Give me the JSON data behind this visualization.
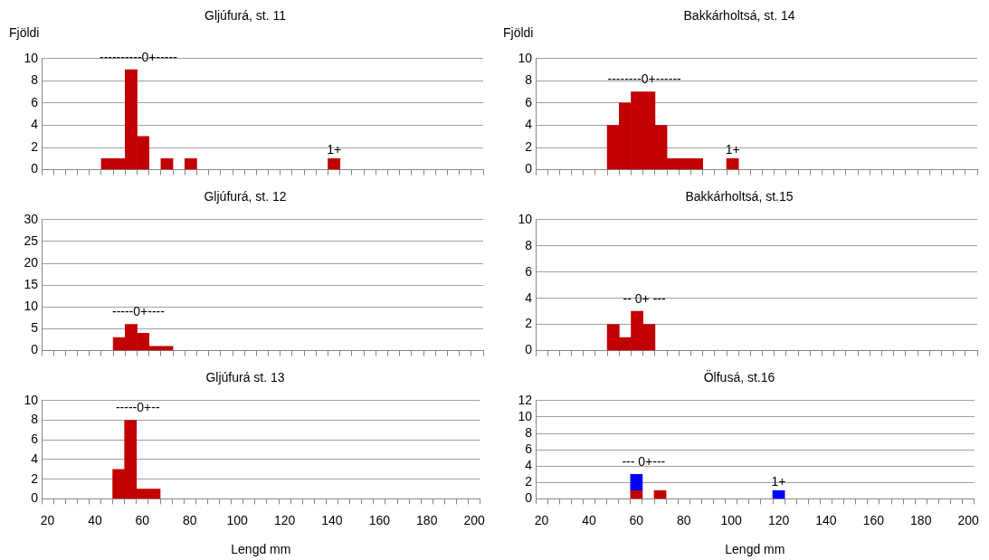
{
  "chart_data": [
    {
      "type": "bar",
      "title": "Gljúfurá, st. 11",
      "ylabel": "Fjöldi",
      "color": "#c00000",
      "categories": [
        "20",
        null,
        null,
        null,
        "40",
        null,
        null,
        null,
        "60",
        null,
        null,
        null,
        "80",
        null,
        null,
        null,
        "100",
        null,
        null,
        null,
        "120",
        null,
        null,
        null,
        "140",
        null,
        null,
        null,
        "160",
        null,
        null,
        null,
        "180",
        null,
        null,
        null,
        "200"
      ],
      "values": [
        null,
        null,
        null,
        null,
        null,
        1,
        1,
        9,
        3,
        null,
        1,
        null,
        1,
        null,
        null,
        null,
        null,
        null,
        null,
        null,
        null,
        null,
        null,
        null,
        1,
        null,
        null,
        null,
        null,
        null,
        null,
        null,
        null,
        null,
        null,
        null,
        null
      ],
      "ylim": [
        0,
        10
      ],
      "yticks": [
        0,
        2,
        4,
        6,
        8,
        10
      ],
      "grid": "y",
      "tick_labels": "y",
      "annotations": [
        "----------0+-----",
        {
          "text": "1+",
          "x": "140",
          "y": 1
        }
      ]
    },
    {
      "type": "bar",
      "title": "Bakkárholtsá, st. 14",
      "ylabel": "Fjöldi",
      "color": "#c00000",
      "categories": [
        "20",
        null,
        null,
        null,
        "40",
        null,
        null,
        null,
        "60",
        null,
        null,
        null,
        "80",
        null,
        null,
        null,
        "100",
        null,
        null,
        null,
        "120",
        null,
        null,
        null,
        "140",
        null,
        null,
        null,
        "160",
        null,
        null,
        null,
        "180",
        null,
        null,
        null,
        "200"
      ],
      "values": [
        null,
        null,
        null,
        null,
        null,
        null,
        4,
        6,
        7,
        7,
        4,
        1,
        1,
        1,
        null,
        null,
        1,
        null,
        null,
        null,
        null,
        null,
        null,
        null,
        null,
        null,
        null,
        null,
        null,
        null,
        null,
        null,
        null,
        null,
        null,
        null,
        null
      ],
      "ylim": [
        0,
        10
      ],
      "yticks": [
        0,
        2,
        4,
        6,
        8,
        10
      ],
      "grid": "y",
      "tick_labels": "y",
      "annotations": [
        "--------0+------",
        {
          "text": "1+",
          "x": "100",
          "y": 1
        }
      ]
    },
    {
      "type": "bar",
      "title": "Gljúfurá, st. 12",
      "color": "#c00000",
      "categories": [
        "20",
        null,
        null,
        null,
        "40",
        null,
        null,
        null,
        "60",
        null,
        null,
        null,
        "80",
        null,
        null,
        null,
        "100",
        null,
        null,
        null,
        "120",
        null,
        null,
        null,
        "140",
        null,
        null,
        null,
        "160",
        null,
        null,
        null,
        "180",
        null,
        null,
        null,
        "200"
      ],
      "values": [
        null,
        null,
        null,
        null,
        null,
        null,
        3,
        6,
        4,
        1,
        1,
        null,
        null,
        null,
        null,
        null,
        null,
        null,
        null,
        null,
        null,
        null,
        null,
        null,
        null,
        null,
        null,
        null,
        null,
        null,
        null,
        null,
        null,
        null,
        null,
        null,
        null
      ],
      "ylim": [
        0,
        30
      ],
      "yticks": [
        0,
        5,
        10,
        15,
        20,
        25,
        30
      ],
      "grid": "y",
      "tick_labels": "y",
      "annotations": [
        "-----0+----"
      ]
    },
    {
      "type": "bar",
      "title": "Bakkárholtsá, st.15",
      "color": "#c00000",
      "categories": [
        "20",
        null,
        null,
        null,
        "40",
        null,
        null,
        null,
        "60",
        null,
        null,
        null,
        "80",
        null,
        null,
        null,
        "100",
        null,
        null,
        null,
        "120",
        null,
        null,
        null,
        "140",
        null,
        null,
        null,
        "160",
        null,
        null,
        null,
        "180",
        null,
        null,
        null,
        "200"
      ],
      "values": [
        null,
        null,
        null,
        null,
        null,
        null,
        2,
        1,
        3,
        2,
        null,
        null,
        null,
        null,
        null,
        null,
        null,
        null,
        null,
        null,
        null,
        null,
        null,
        null,
        null,
        null,
        null,
        null,
        null,
        null,
        null,
        null,
        null,
        null,
        null,
        null,
        null
      ],
      "ylim": [
        0,
        10
      ],
      "yticks": [
        0,
        2,
        4,
        6,
        8,
        10
      ],
      "grid": "y",
      "tick_labels": "y",
      "annotations": [
        "-- 0+ ---"
      ]
    },
    {
      "type": "bar",
      "title": "Gljúfurá st. 13",
      "xlabel": "Lengd mm",
      "color": "#c00000",
      "categories": [
        "20",
        null,
        null,
        null,
        "40",
        null,
        null,
        null,
        "60",
        null,
        null,
        null,
        "80",
        null,
        null,
        null,
        "100",
        null,
        null,
        null,
        "120",
        null,
        null,
        null,
        "140",
        null,
        null,
        null,
        "160",
        null,
        null,
        null,
        "180",
        null,
        null,
        null,
        "200"
      ],
      "values": [
        null,
        null,
        null,
        null,
        null,
        null,
        3,
        8,
        1,
        1,
        null,
        null,
        null,
        null,
        null,
        null,
        null,
        null,
        null,
        null,
        null,
        null,
        null,
        null,
        null,
        null,
        null,
        null,
        null,
        null,
        null,
        null,
        null,
        null,
        null,
        null,
        null
      ],
      "ylim": [
        0,
        10
      ],
      "yticks": [
        0,
        2,
        4,
        6,
        8,
        10
      ],
      "grid": "y",
      "annotations": [
        "-----0+--"
      ]
    },
    {
      "type": "bar",
      "title": "Ölfusá, st.16",
      "xlabel": "Lengd mm",
      "stacked": true,
      "categories": [
        "20",
        null,
        null,
        null,
        "40",
        null,
        null,
        null,
        "60",
        null,
        null,
        null,
        "80",
        null,
        null,
        null,
        "100",
        null,
        null,
        null,
        "120",
        null,
        null,
        null,
        "140",
        null,
        null,
        null,
        "160",
        null,
        null,
        null,
        "180",
        null,
        null,
        null,
        "200"
      ],
      "series": [
        {
          "color": "#c00000",
          "values": [
            null,
            null,
            null,
            null,
            null,
            null,
            null,
            null,
            1,
            null,
            1,
            null,
            null,
            null,
            null,
            null,
            null,
            null,
            null,
            null,
            null,
            null,
            null,
            null,
            null,
            null,
            null,
            null,
            null,
            null,
            null,
            null,
            null,
            null,
            null,
            null,
            null
          ]
        },
        {
          "color": "#0000ff",
          "values": [
            null,
            null,
            null,
            null,
            null,
            null,
            null,
            null,
            2,
            null,
            null,
            null,
            null,
            null,
            null,
            null,
            null,
            null,
            null,
            null,
            1,
            null,
            null,
            null,
            null,
            null,
            null,
            null,
            null,
            null,
            null,
            null,
            null,
            null,
            null,
            null,
            null
          ]
        }
      ],
      "ylim": [
        0,
        12
      ],
      "yticks": [
        0,
        2,
        4,
        6,
        8,
        10,
        12
      ],
      "grid": "y",
      "annotations": [
        "--- 0+---",
        {
          "text": "1+",
          "x": "120",
          "y": 1
        }
      ]
    }
  ]
}
